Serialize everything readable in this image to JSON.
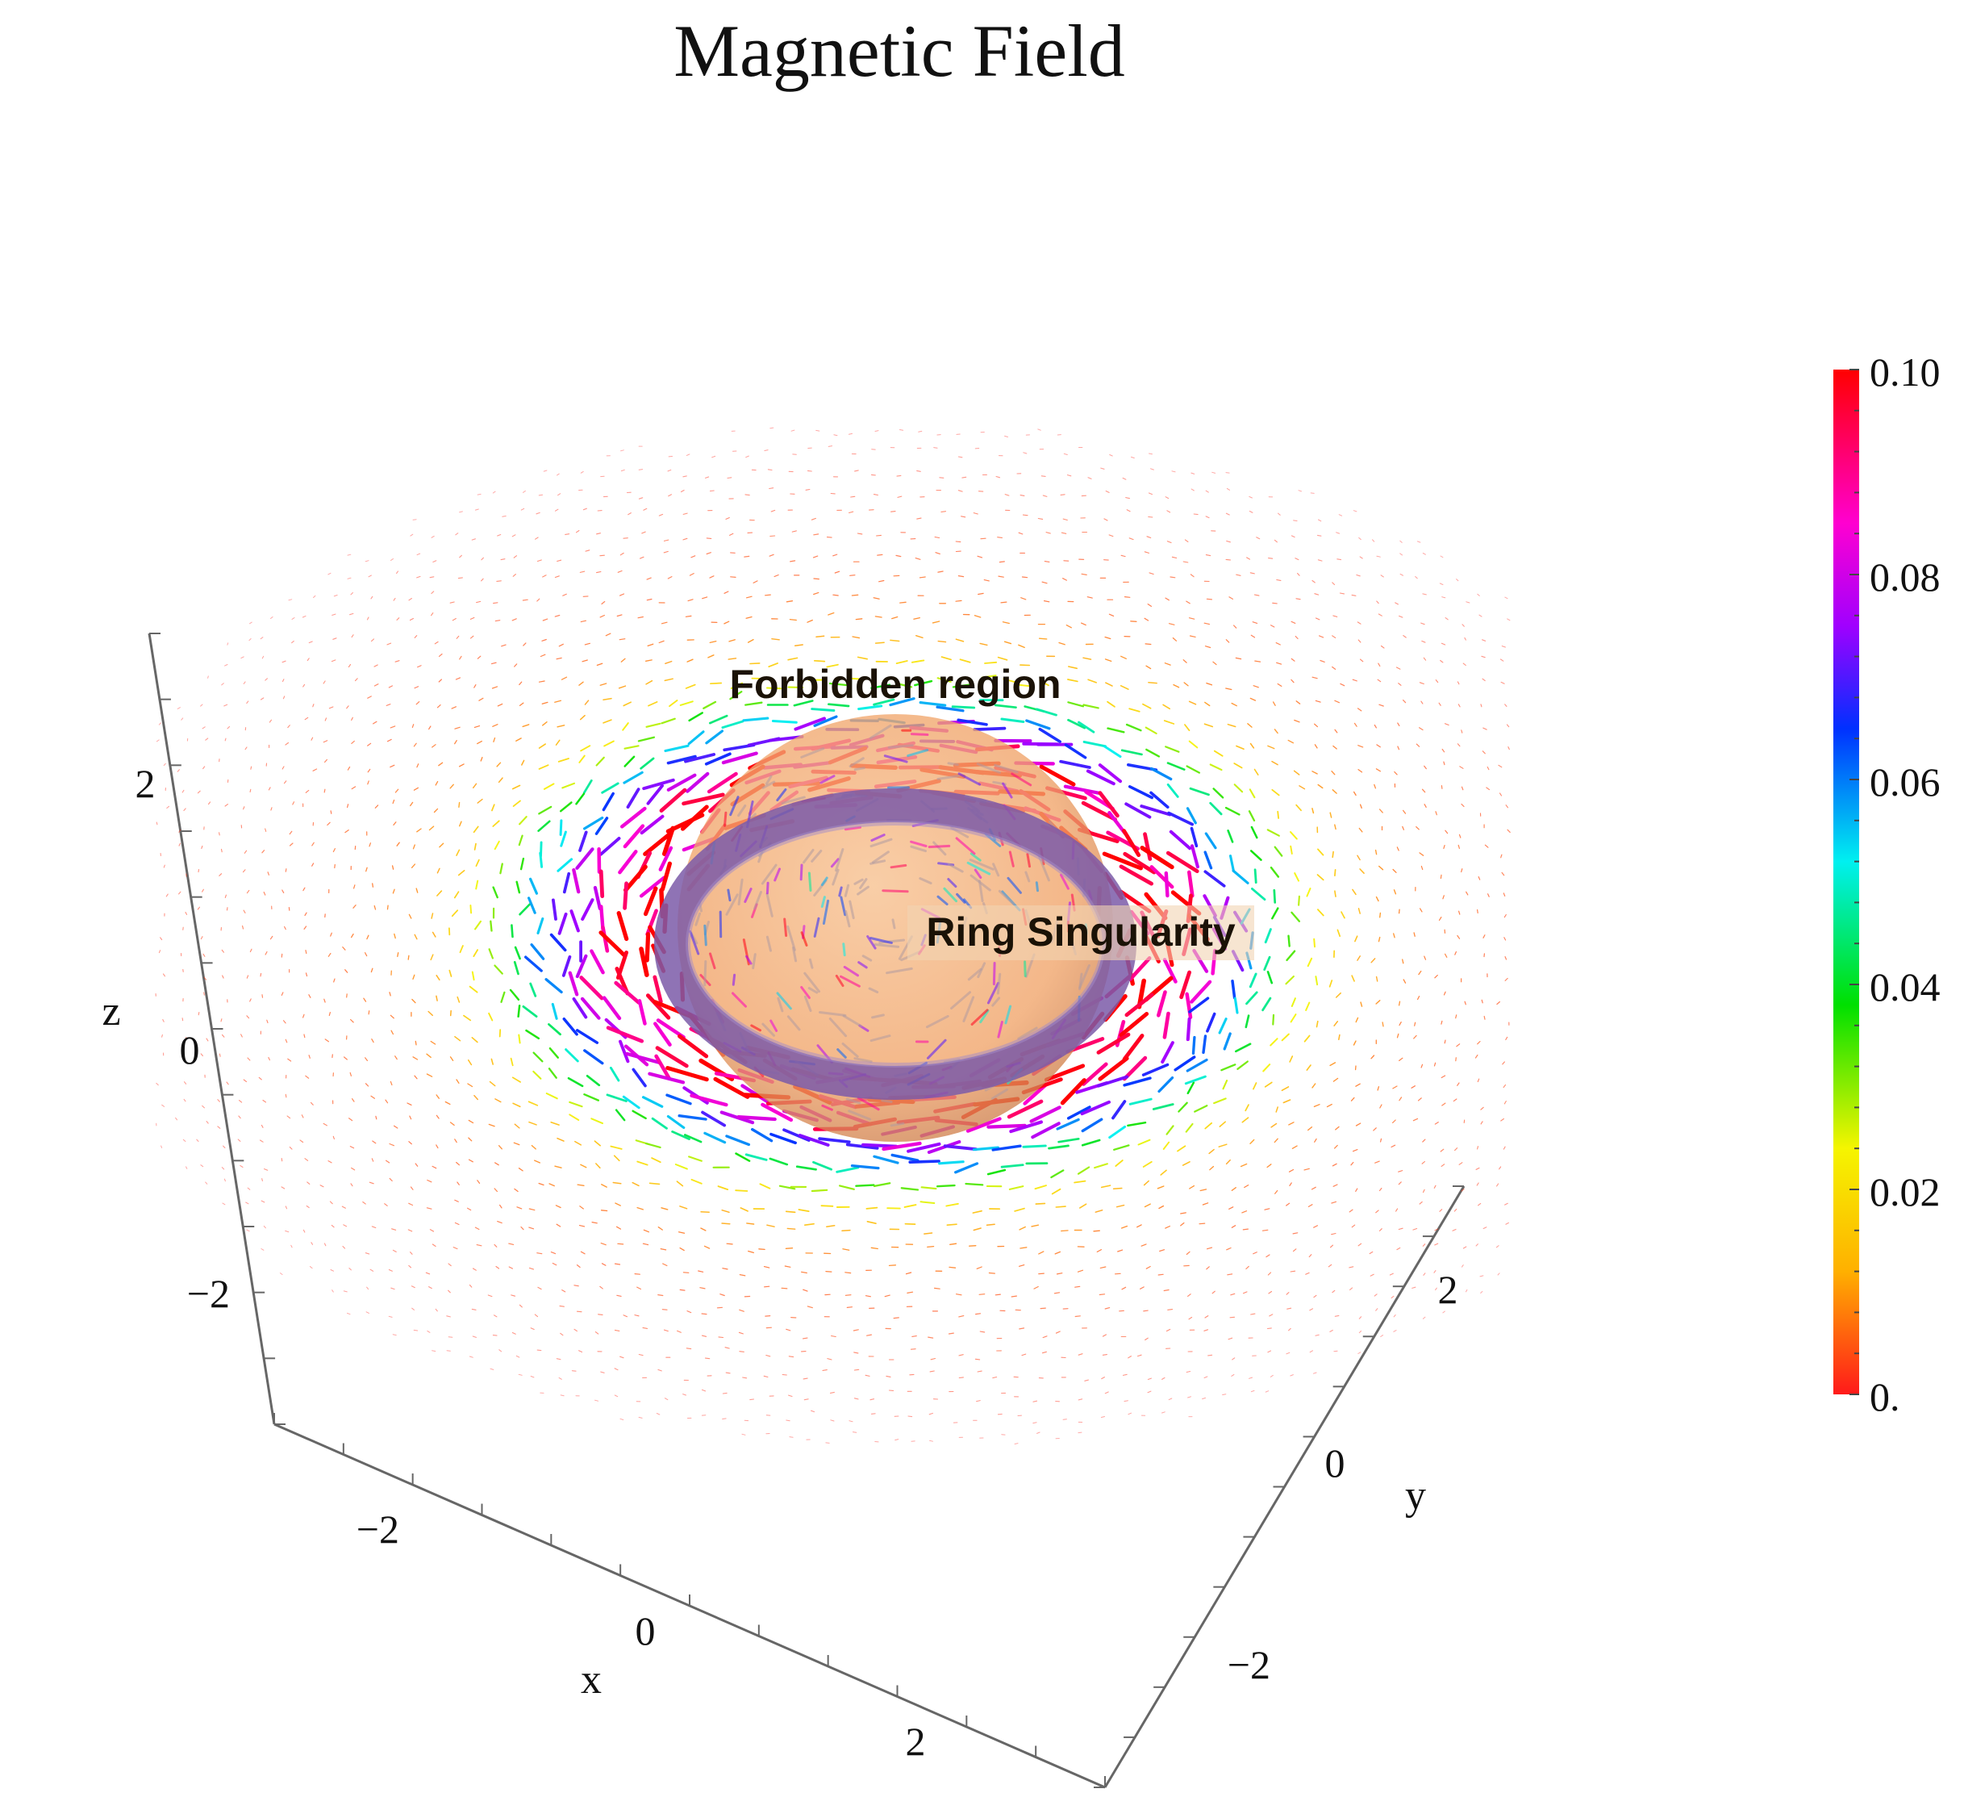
{
  "chart_data": {
    "type": "3d-vector-field",
    "title": "Magnetic Field",
    "axes": {
      "x": {
        "label": "x",
        "ticks": [
          "−2",
          "0",
          "2"
        ],
        "range": [
          -3,
          3
        ]
      },
      "y": {
        "label": "y",
        "ticks": [
          "−2",
          "0",
          "2"
        ],
        "range": [
          -3,
          3
        ]
      },
      "z": {
        "label": "z",
        "ticks": [
          "−2",
          "0",
          "2"
        ],
        "range": [
          -3,
          3
        ]
      }
    },
    "annotations": {
      "forbidden_region": "Forbidden region",
      "ring_singularity": "Ring Singularity"
    },
    "surfaces": {
      "forbidden_region_color": "#f3a86e",
      "ring_color": "#8b6bb8"
    },
    "colorbar": {
      "min": 0.0,
      "max": 0.1,
      "ticks": [
        "0.",
        "0.02",
        "0.04",
        "0.06",
        "0.08",
        "0.10"
      ],
      "colors": [
        "#ff1a1a",
        "#ffb000",
        "#f5f500",
        "#00e000",
        "#00f0f0",
        "#0030ff",
        "#a000ff",
        "#ff00d0",
        "#ff0000"
      ]
    },
    "field_magnitude_peak_near_ring": 0.1
  }
}
